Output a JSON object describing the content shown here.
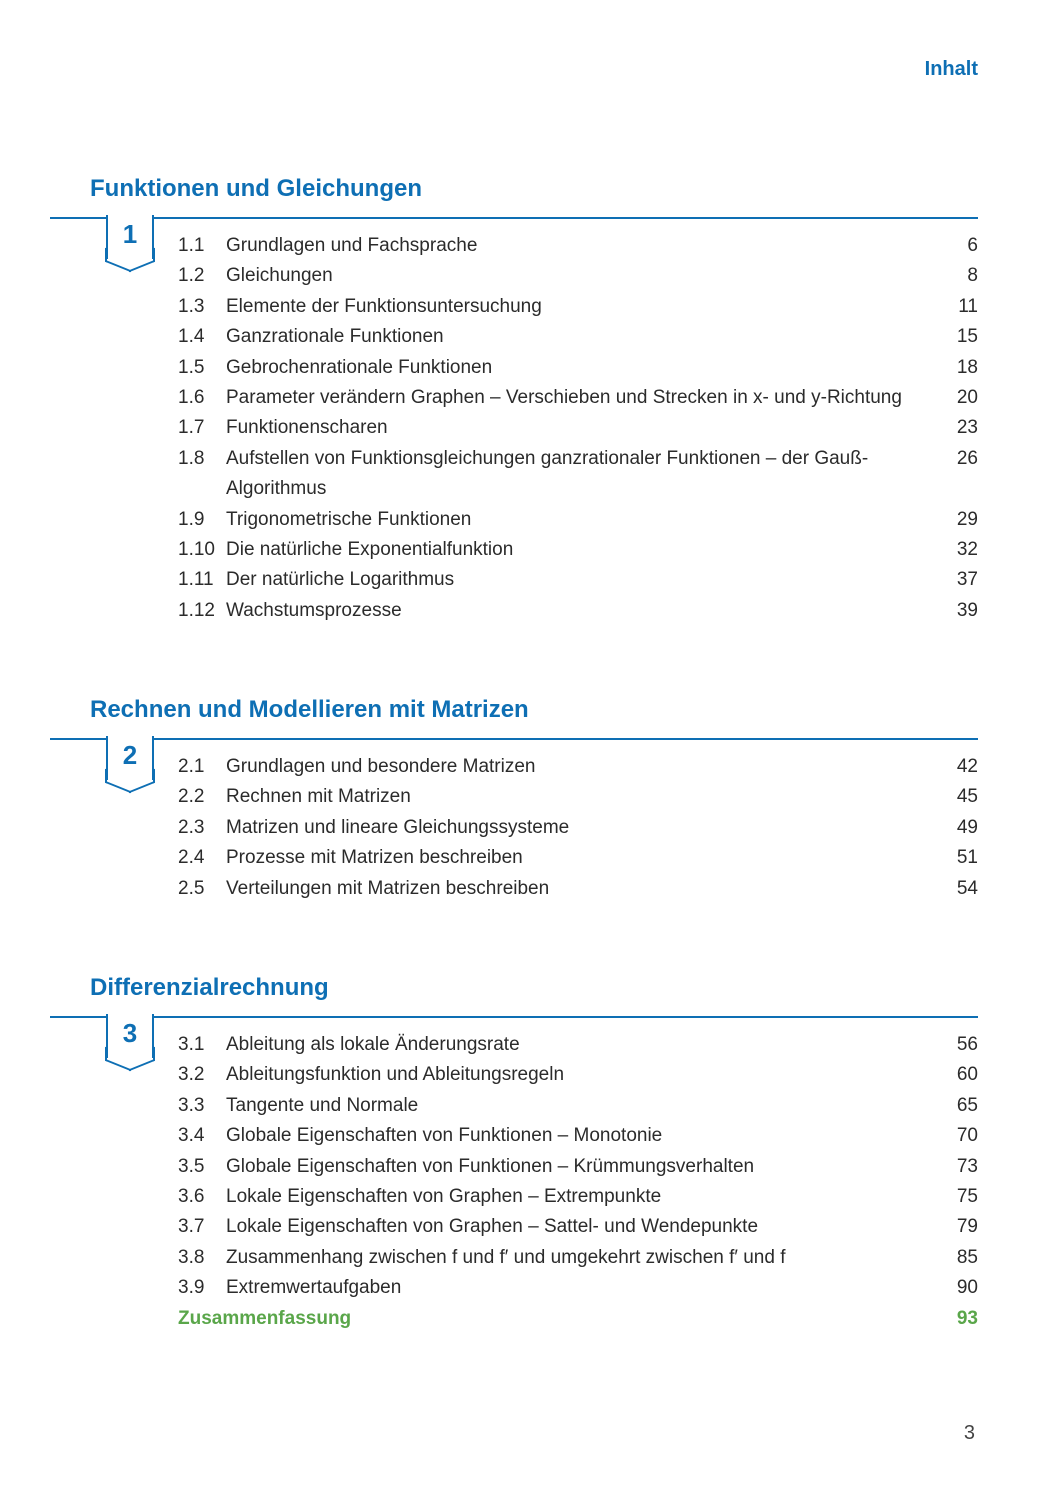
{
  "colors": {
    "accent": "#0e6fb4",
    "text": "#2b2b2b",
    "summary": "#5aa64a",
    "rule": "#0e6fb4",
    "background": "#ffffff"
  },
  "typography": {
    "header_fontsize": 20,
    "chapter_title_fontsize": 24,
    "badge_num_fontsize": 26,
    "entry_fontsize": 19,
    "line_height": 1.6
  },
  "header": "Inhalt",
  "page_number": "3",
  "chapters": [
    {
      "number": "1",
      "title": "Funktionen und Gleichungen",
      "entries": [
        {
          "num": "1.1",
          "text": "Grundlagen und Fachsprache",
          "page": "6"
        },
        {
          "num": "1.2",
          "text": "Gleichungen",
          "page": "8"
        },
        {
          "num": "1.3",
          "text": "Elemente der Funktionsuntersuchung",
          "page": "11"
        },
        {
          "num": "1.4",
          "text": "Ganzrationale Funktionen",
          "page": "15"
        },
        {
          "num": "1.5",
          "text": "Gebrochenrationale Funktionen",
          "page": "18"
        },
        {
          "num": "1.6",
          "text": "Parameter verändern Graphen – Verschieben und Strecken in x- und y-Richtung",
          "page": "20"
        },
        {
          "num": "1.7",
          "text": "Funktionenscharen",
          "page": "23"
        },
        {
          "num": "1.8",
          "text": "Aufstellen von Funktionsgleichungen ganzrationaler Funktionen – der Gauß-Algorithmus",
          "page": "26"
        },
        {
          "num": "1.9",
          "text": "Trigonometrische Funktionen",
          "page": "29"
        },
        {
          "num": "1.10",
          "text": "Die natürliche Exponentialfunktion",
          "page": "32"
        },
        {
          "num": "1.11",
          "text": "Der natürliche Logarithmus",
          "page": "37"
        },
        {
          "num": "1.12",
          "text": "Wachstumsprozesse",
          "page": "39"
        }
      ]
    },
    {
      "number": "2",
      "title": "Rechnen und Modellieren mit Matrizen",
      "entries": [
        {
          "num": "2.1",
          "text": "Grundlagen und besondere Matrizen",
          "page": "42"
        },
        {
          "num": "2.2",
          "text": "Rechnen mit Matrizen",
          "page": "45"
        },
        {
          "num": "2.3",
          "text": "Matrizen und lineare Gleichungssysteme",
          "page": "49"
        },
        {
          "num": "2.4",
          "text": "Prozesse mit Matrizen beschreiben",
          "page": "51"
        },
        {
          "num": "2.5",
          "text": "Verteilungen mit Matrizen beschreiben",
          "page": "54"
        }
      ]
    },
    {
      "number": "3",
      "title": "Differenzialrechnung",
      "entries": [
        {
          "num": "3.1",
          "text": "Ableitung als lokale Änderungsrate",
          "page": "56"
        },
        {
          "num": "3.2",
          "text": "Ableitungsfunktion und Ableitungsregeln",
          "page": "60"
        },
        {
          "num": "3.3",
          "text": "Tangente und Normale",
          "page": "65"
        },
        {
          "num": "3.4",
          "text": "Globale Eigenschaften von Funktionen – Monotonie",
          "page": "70"
        },
        {
          "num": "3.5",
          "text": "Globale Eigenschaften von Funktionen – Krümmungsverhalten",
          "page": "73"
        },
        {
          "num": "3.6",
          "text": "Lokale Eigenschaften von Graphen – Extrempunkte",
          "page": "75"
        },
        {
          "num": "3.7",
          "text": "Lokale Eigenschaften von Graphen – Sattel- und Wendepunkte",
          "page": "79"
        },
        {
          "num": "3.8",
          "text": "Zusammenhang zwischen f und f′ und umgekehrt zwischen f′ und f",
          "page": "85"
        },
        {
          "num": "3.9",
          "text": "Extremwertaufgaben",
          "page": "90"
        },
        {
          "num": "",
          "text": "Zusammenfassung",
          "page": "93",
          "summary": true
        }
      ]
    }
  ]
}
